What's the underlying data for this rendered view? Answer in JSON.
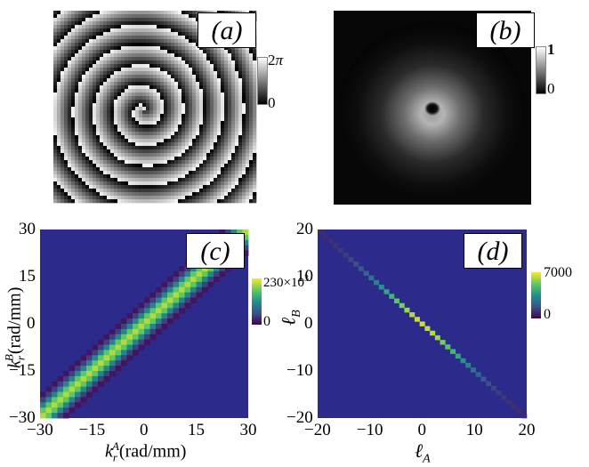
{
  "panels": {
    "a": {
      "label": "(a)",
      "colorbar": {
        "max_label": "2",
        "max_symbol": "π",
        "min_label": "0"
      }
    },
    "b": {
      "label": "(b)",
      "colorbar": {
        "max_label": "1",
        "min_label": "0"
      }
    },
    "c": {
      "label": "(c)",
      "colorbar": {
        "max_label": "230×10",
        "max_exp": "3",
        "min_label": "0"
      }
    },
    "d": {
      "label": "(d)",
      "colorbar": {
        "max_label": "7000",
        "min_label": "0"
      }
    }
  },
  "chart_data": [
    {
      "panel": "c",
      "type": "heatmap",
      "xlabel_sub": "r",
      "xlabel_sup": "A",
      "xlabel_base": "k",
      "xlabel_unit": "(rad/mm)",
      "ylabel_sub": "r",
      "ylabel_sup": "B",
      "ylabel_base": "k",
      "ylabel_unit": "(rad/mm)",
      "xlim": [
        -30,
        30
      ],
      "ylim": [
        -30,
        30
      ],
      "x_ticks": [
        "−30",
        "−15",
        "0",
        "15",
        "30"
      ],
      "y_ticks": [
        "30",
        "15",
        "0",
        "−15",
        "−30"
      ],
      "zlim": [
        0,
        230000
      ],
      "grid": false
    },
    {
      "panel": "d",
      "type": "heatmap",
      "xlabel_base": "ℓ",
      "xlabel_sub": "A",
      "ylabel_base": "ℓ",
      "ylabel_sub": "B",
      "xlim": [
        -20,
        20
      ],
      "ylim": [
        -20,
        20
      ],
      "x_ticks": [
        "−20",
        "−10",
        "0",
        "10",
        "20"
      ],
      "y_ticks": [
        "20",
        "10",
        "0",
        "−10",
        "−20"
      ],
      "zlim": [
        0,
        7000
      ],
      "grid": false
    }
  ],
  "colors": {
    "viridis_low": "#440154",
    "viridis_bg": "#2c2b8c",
    "viridis_high": "#fde725"
  }
}
